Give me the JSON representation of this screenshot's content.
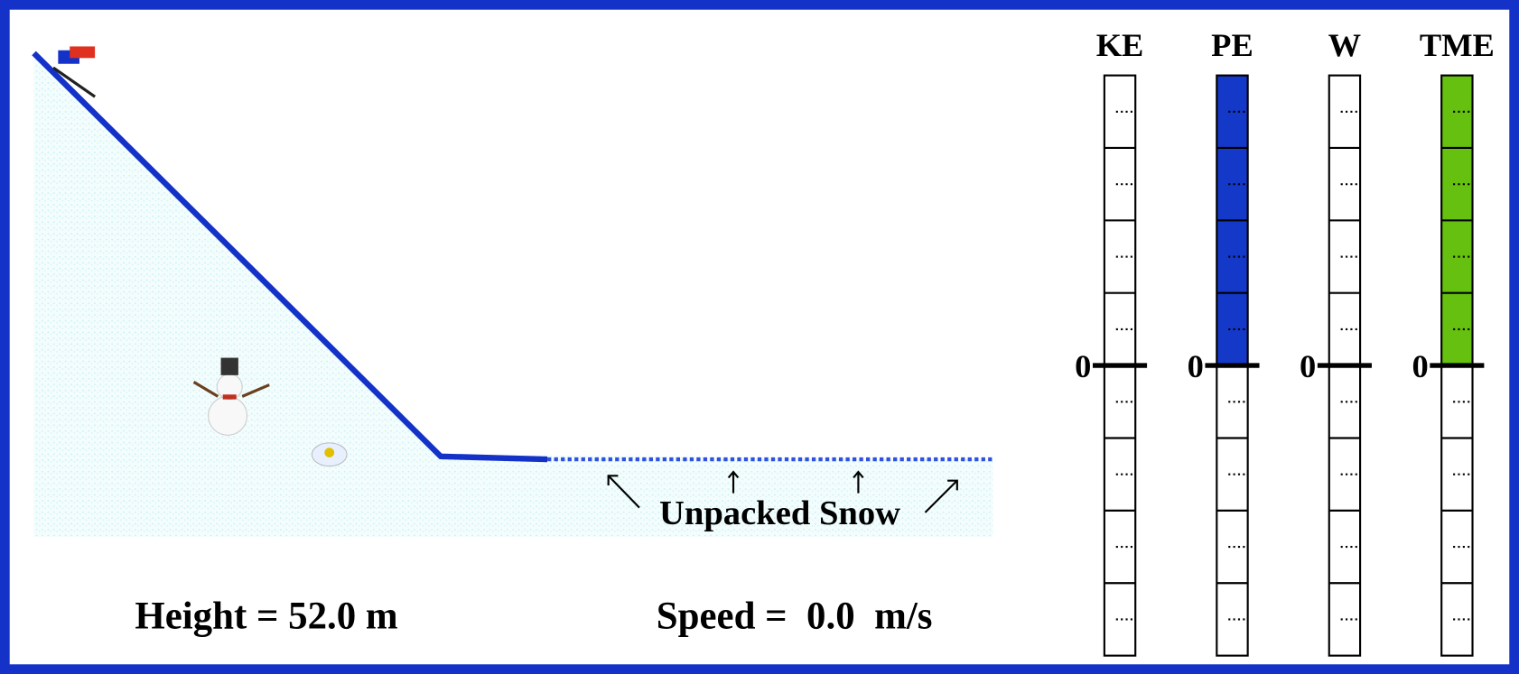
{
  "scene": {
    "height_readout": "Height = 52.0 m",
    "speed_readout": "Speed =  0.0  m/s",
    "snow_label": "Unpacked Snow"
  },
  "energy_chart": {
    "type": "bar",
    "zero_tick": 0,
    "ylim": [
      -4,
      4
    ],
    "bars": [
      {
        "label": "KE",
        "value": 0,
        "color": "#1438c8"
      },
      {
        "label": "PE",
        "value": 4,
        "color": "#1438c8"
      },
      {
        "label": "W",
        "value": 0,
        "color": "#1438c8"
      },
      {
        "label": "TME",
        "value": 4,
        "color": "#66c010"
      }
    ]
  }
}
